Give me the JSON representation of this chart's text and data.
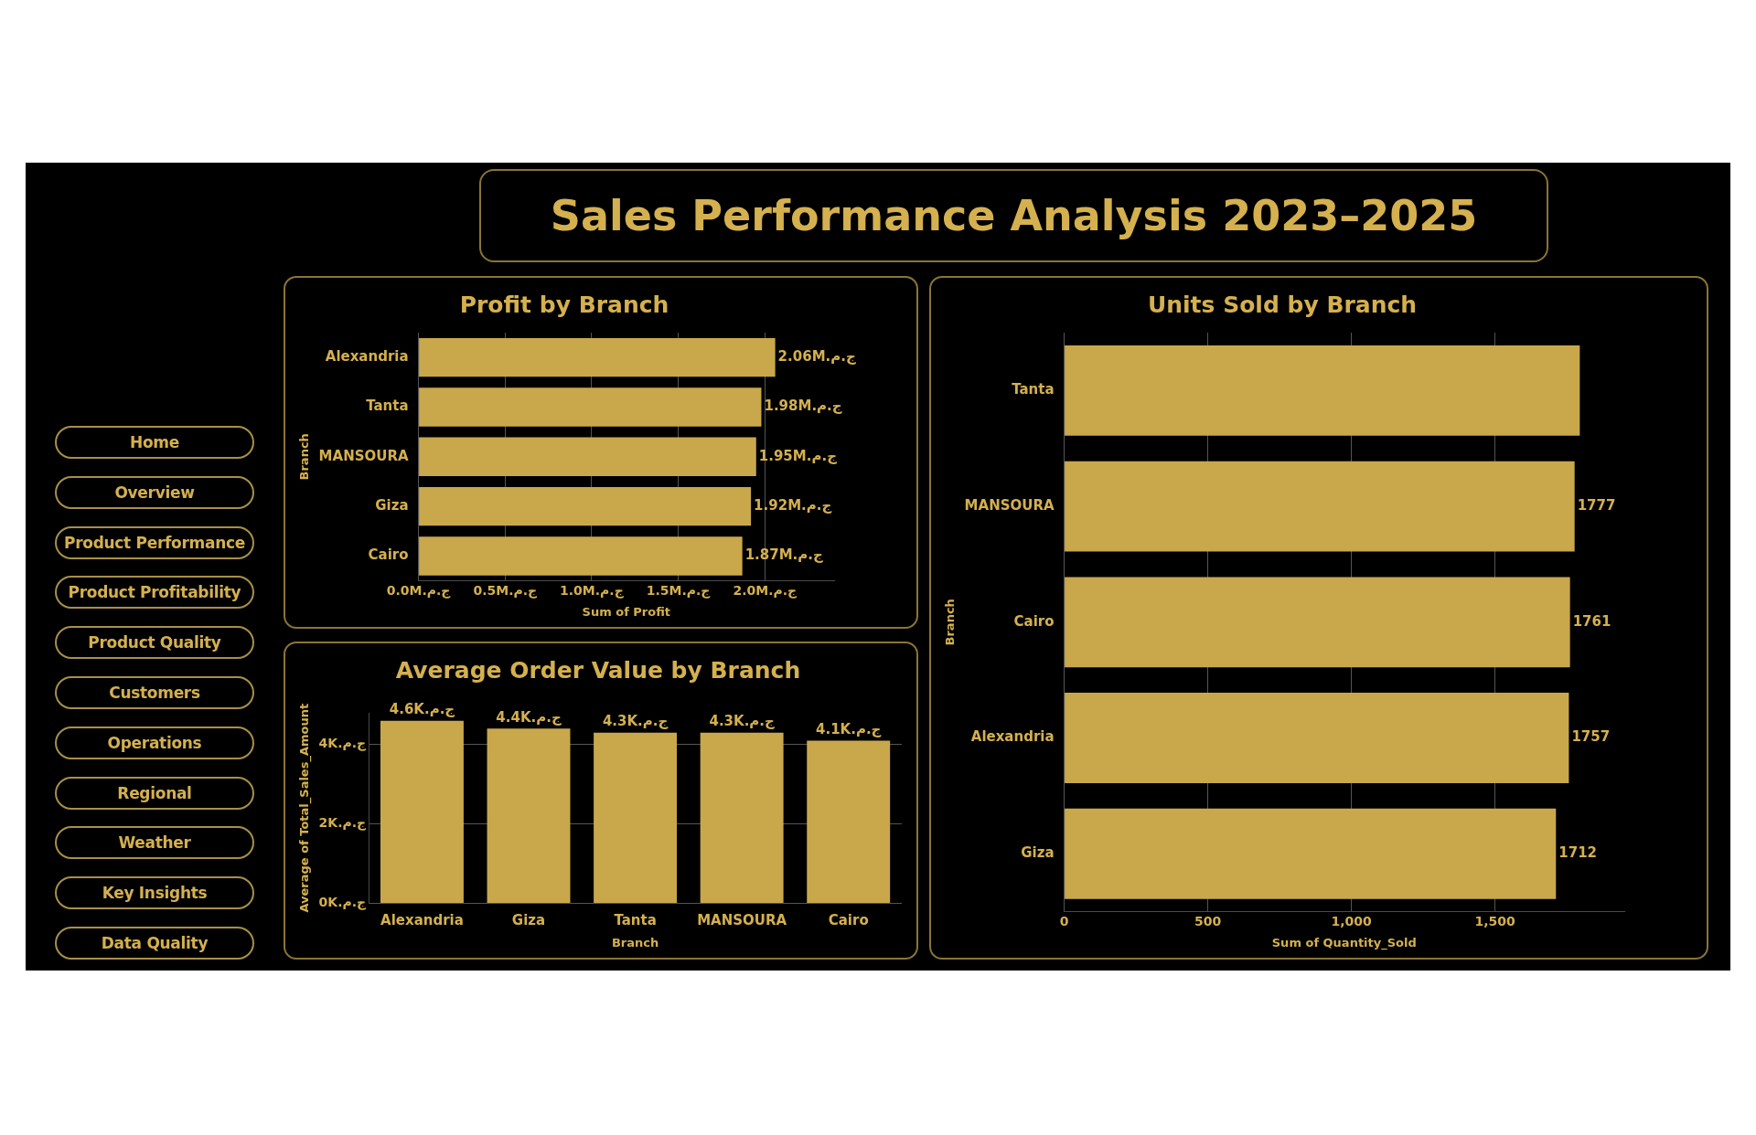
{
  "chart_data": [
    {
      "type": "other",
      "title": "Sales Performance Analysis 2023–2025"
    },
    {
      "type": "other",
      "annotations": [
        "Home",
        "Overview",
        "Product Performance",
        "Product Profitability",
        "Product Quality",
        "Customers",
        "Operations",
        "Regional",
        "Weather",
        "Key Insights",
        "Data Quality"
      ]
    },
    {
      "type": "bar",
      "orientation": "horizontal",
      "title": "Profit by Branch",
      "xlabel": "Sum of Profit",
      "ylabel": "Branch",
      "categories": [
        "Alexandria",
        "Tanta",
        "MANSOURA",
        "Giza",
        "Cairo"
      ],
      "values": [
        2060000,
        1980000,
        1950000,
        1920000,
        1870000
      ],
      "value_labels": [
        "2.06M.ج.م",
        "1.98M.ج.م",
        "1.95M.ج.م",
        "1.92M.ج.م",
        "1.87M.ج.م"
      ],
      "color": "#c9a84c",
      "xlim": [
        0,
        2400000
      ],
      "xticks": [
        {
          "value": 0,
          "label": "0.0M.ج.م"
        },
        {
          "value": 500000,
          "label": "0.5M.ج.م"
        },
        {
          "value": 1000000,
          "label": "1.0M.ج.م"
        },
        {
          "value": 1500000,
          "label": "1.5M.ج.م"
        },
        {
          "value": 2000000,
          "label": "2.0M.ج.م"
        }
      ],
      "grid": "x"
    },
    {
      "type": "bar",
      "orientation": "horizontal",
      "title": "Units Sold by Branch",
      "xlabel": "Sum of Quantity_Sold",
      "ylabel": "Branch",
      "categories": [
        "Tanta",
        "MANSOURA",
        "Cairo",
        "Alexandria",
        "Giza"
      ],
      "values": [
        1795,
        1777,
        1761,
        1757,
        1712
      ],
      "value_labels": [
        null,
        "1777",
        "1761",
        "1757",
        "1712"
      ],
      "color": "#c9a84c",
      "xlim": [
        0,
        1950
      ],
      "xticks": [
        0,
        500,
        {
          "value": 1000,
          "label": "1,000"
        },
        {
          "value": 1500,
          "label": "1,500"
        }
      ],
      "grid": "x"
    },
    {
      "type": "bar",
      "title": "Average Order Value by Branch",
      "xlabel": "Branch",
      "ylabel": "Average of Total_Sales_Amount",
      "categories": [
        "Alexandria",
        "Giza",
        "Tanta",
        "MANSOURA",
        "Cairo"
      ],
      "values": [
        4600,
        4400,
        4300,
        4300,
        4100
      ],
      "value_labels": [
        "4.6K.ج.م",
        "4.4K.ج.م",
        "4.3K.ج.م",
        "4.3K.ج.م",
        "4.1K.ج.م"
      ],
      "color": "#c9a84c",
      "ylim": [
        0,
        4800
      ],
      "yticks": [
        {
          "value": 0,
          "label": "0K.ج.م"
        },
        {
          "value": 2000,
          "label": "2K.ج.م"
        },
        {
          "value": 4000,
          "label": "4K.ج.م"
        }
      ],
      "grid": "y"
    }
  ]
}
